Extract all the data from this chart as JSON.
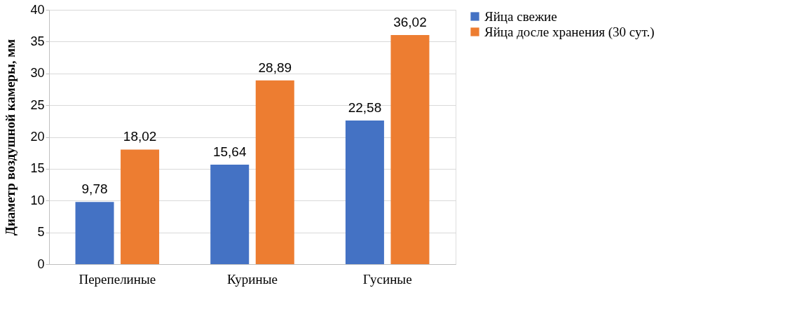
{
  "chart_data": {
    "type": "bar",
    "ylabel": "Диаметр воздушной камеры, мм",
    "categories": [
      "Перепелиные",
      "Куриные",
      "Гусиные"
    ],
    "series": [
      {
        "name": "Яйца свежие",
        "color": "#4472c4",
        "values": [
          9.78,
          15.64,
          22.58
        ],
        "value_labels": [
          "9,78",
          "15,64",
          "22,58"
        ]
      },
      {
        "name": "Яйца досле хранения (30 сут.)",
        "color": "#ed7d31",
        "values": [
          18.02,
          28.89,
          36.02
        ],
        "value_labels": [
          "18,02",
          "28,89",
          "36,02"
        ]
      }
    ],
    "ylim": [
      0,
      40
    ],
    "yticks": [
      0,
      5,
      10,
      15,
      20,
      25,
      30,
      35,
      40
    ],
    "grid": "y",
    "legend": "right"
  }
}
